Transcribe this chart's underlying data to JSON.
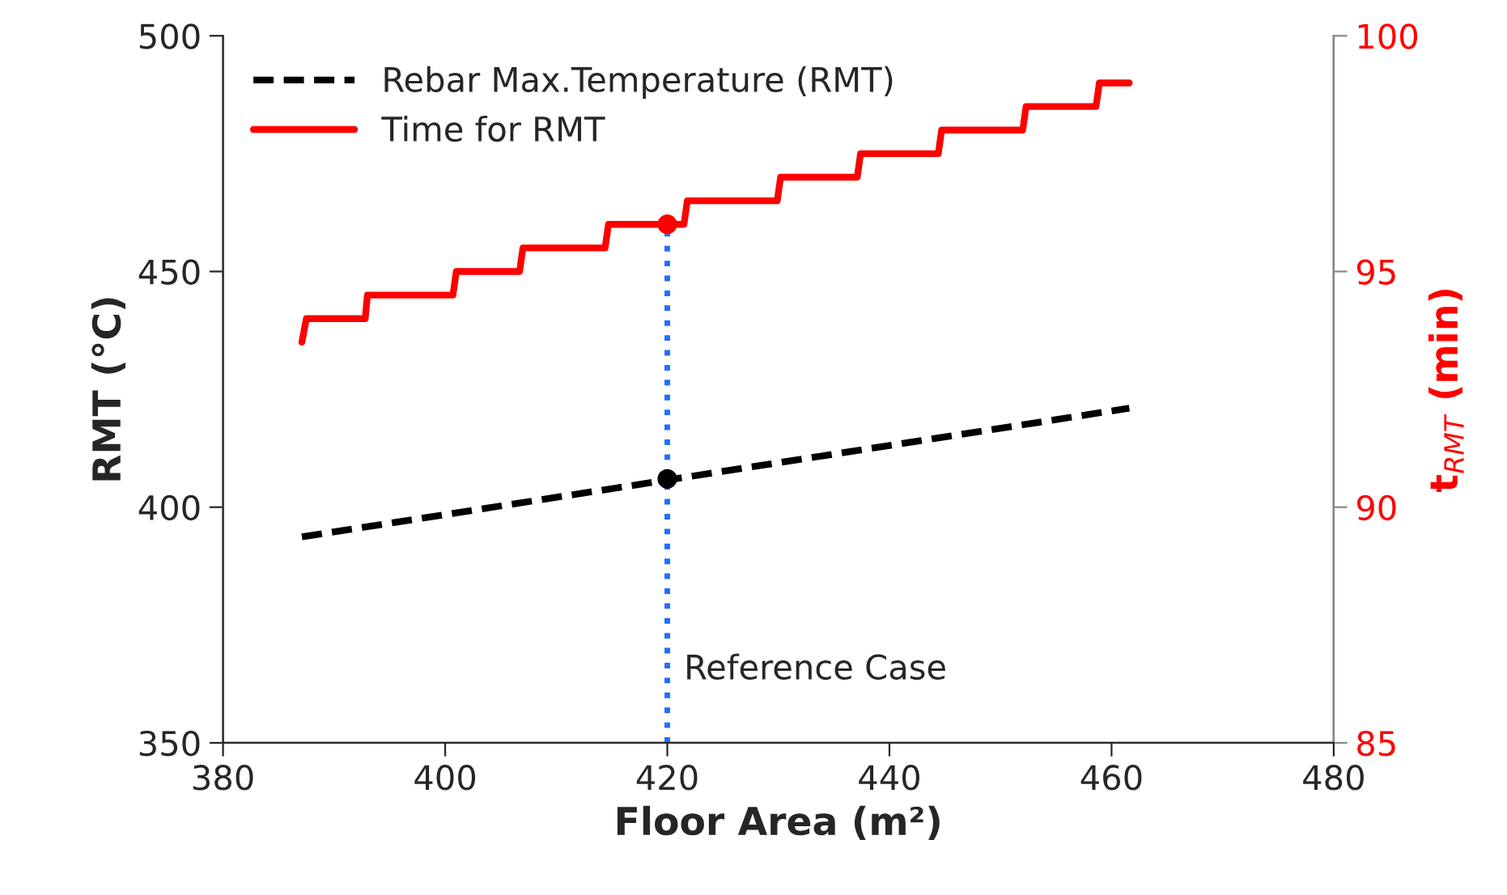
{
  "chart_data": {
    "type": "line",
    "xlabel": "Floor Area (m²)",
    "ylabel": "RMT (°C)",
    "y2label": "t$_{RMT}$ (min)",
    "xlim": [
      380,
      480
    ],
    "xticks": [
      380,
      400,
      420,
      440,
      460,
      480
    ],
    "ylim": [
      350,
      500
    ],
    "yticks": [
      350,
      400,
      450,
      500
    ],
    "y2lim": [
      85,
      100
    ],
    "y2ticks": [
      85,
      90,
      95,
      100
    ],
    "legend": "top left",
    "grid": false,
    "series": [
      {
        "name": "Rebar Max.Temperature (RMT)",
        "color": "#000000",
        "line_style": "dashed",
        "x": [
          387.1,
          461.6
        ],
        "values": [
          393.7,
          421
        ]
      },
      {
        "name": "Time for RMT",
        "color": "#ff0000",
        "line_style": "solid",
        "axis": "y2",
        "x": [
          387.1,
          387.5,
          392.8,
          393,
          400.7,
          401,
          406.7,
          407,
          414.4,
          414.7,
          421.5,
          421.8,
          429.9,
          430.2,
          437.1,
          437.4,
          444.4,
          444.7,
          452,
          452.3,
          458.6,
          458.9,
          461.6
        ],
        "values": [
          93.5,
          94,
          94,
          94.5,
          94.5,
          95,
          95,
          95.5,
          95.5,
          96,
          96,
          96.5,
          96.5,
          97,
          97,
          97.5,
          97.5,
          98,
          98,
          98.5,
          98.5,
          99,
          99
        ]
      },
      {
        "type": "scatter",
        "color": "#000000",
        "x": [
          420
        ],
        "values": [
          406
        ]
      },
      {
        "type": "scatter",
        "color": "#ff0000",
        "axis": "y2",
        "x": [
          420
        ],
        "values": [
          96
        ]
      }
    ],
    "ref_lines": [
      {
        "axis": "x",
        "value": 420,
        "label": "Reference Case",
        "color": "#1f6fff",
        "line_style": "dotted"
      }
    ]
  }
}
